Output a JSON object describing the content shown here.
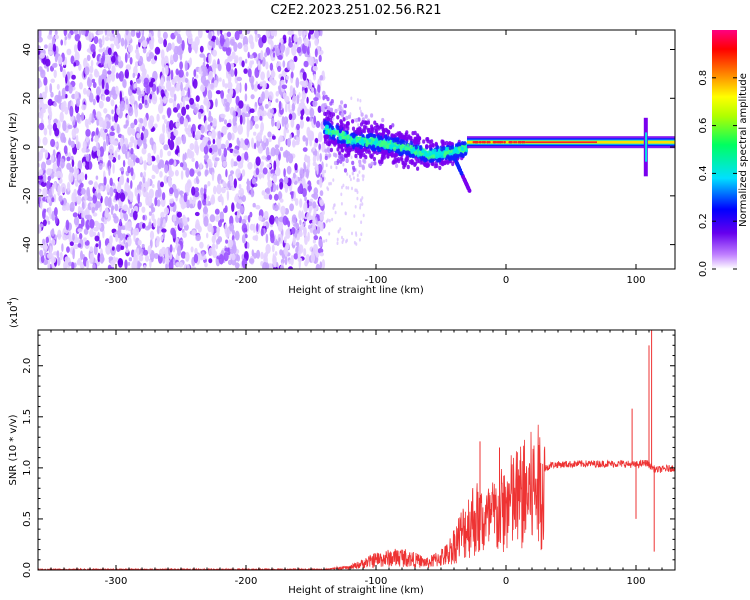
{
  "title": "C2E2.2023.251.02.56.R21",
  "colors": {
    "background": "#ffffff",
    "snr_line": "#ee3333",
    "spectrogram_low": "#7a00ee",
    "spectrogram_mid": "#00e6e6",
    "spectrogram_high": "#ff2020"
  },
  "chart_data": [
    {
      "type": "heatmap",
      "name": "spectrogram",
      "xlabel": "Height of straight line (km)",
      "ylabel": "Frequency (Hz)",
      "xlim": [
        -360,
        130
      ],
      "ylim": [
        -50,
        48
      ],
      "x_ticks": [
        -300,
        -200,
        -100,
        0,
        100
      ],
      "x_tick_labels": [
        "-300",
        "-200",
        "-100",
        "0",
        "100"
      ],
      "y_ticks": [
        -40,
        -20,
        0,
        20,
        40
      ],
      "y_tick_labels": [
        "-40",
        "-20",
        "0",
        "20",
        "40"
      ],
      "colorbar": {
        "label": "Normalized spectral amplitude",
        "range": [
          0,
          1
        ],
        "ticks": [
          0.0,
          0.2,
          0.4,
          0.6,
          0.8
        ],
        "tick_labels": [
          "0.0",
          "0.2",
          "0.4",
          "0.6",
          "0.8"
        ]
      },
      "regions": [
        {
          "x_range": [
            -360,
            -140
          ],
          "description_level": 0.15,
          "freq_range": [
            -50,
            48
          ]
        },
        {
          "x_range": [
            -140,
            -30
          ],
          "description_level": 0.35,
          "freq_range": [
            -20,
            15
          ]
        },
        {
          "x_range": [
            -30,
            130
          ],
          "description_level": 0.9,
          "freq_range": [
            0,
            4
          ]
        }
      ],
      "carrier_track": [
        {
          "x": -140,
          "y": 8
        },
        {
          "x": -120,
          "y": 3
        },
        {
          "x": -100,
          "y": 2
        },
        {
          "x": -80,
          "y": 0
        },
        {
          "x": -60,
          "y": -3
        },
        {
          "x": -40,
          "y": -2
        },
        {
          "x": -30,
          "y": 0
        },
        {
          "x": 0,
          "y": 2
        },
        {
          "x": 50,
          "y": 2
        },
        {
          "x": 100,
          "y": 2
        },
        {
          "x": 130,
          "y": 3
        }
      ]
    },
    {
      "type": "line",
      "name": "snr",
      "xlabel": "Height of straight line (km)",
      "ylabel": "SNR (10 * v/v)",
      "y_multiplier": "(x10",
      "y_multiplier_exp": "4",
      "y_multiplier_close": ")",
      "xlim": [
        -360,
        130
      ],
      "ylim": [
        0,
        23500
      ],
      "x_ticks": [
        -300,
        -200,
        -100,
        0,
        100
      ],
      "x_tick_labels": [
        "-300",
        "-200",
        "-100",
        "0",
        "100"
      ],
      "y_ticks": [
        0,
        5000,
        10000,
        15000,
        20000
      ],
      "y_tick_labels": [
        "0.0",
        "0.5",
        "1.0",
        "1.5",
        "2.0"
      ],
      "envelope": [
        {
          "x": -360,
          "y": 50
        },
        {
          "x": -140,
          "y": 60
        },
        {
          "x": -120,
          "y": 300
        },
        {
          "x": -100,
          "y": 1200
        },
        {
          "x": -80,
          "y": 1500
        },
        {
          "x": -60,
          "y": 800
        },
        {
          "x": -45,
          "y": 1800
        },
        {
          "x": -35,
          "y": 4000
        },
        {
          "x": -25,
          "y": 6000
        },
        {
          "x": -15,
          "y": 5500
        },
        {
          "x": -5,
          "y": 6500
        },
        {
          "x": 5,
          "y": 7800
        },
        {
          "x": 20,
          "y": 9200
        },
        {
          "x": 35,
          "y": 10300
        },
        {
          "x": 60,
          "y": 10400
        },
        {
          "x": 90,
          "y": 10400
        },
        {
          "x": 100,
          "y": 10300
        },
        {
          "x": 108,
          "y": 10500
        },
        {
          "x": 115,
          "y": 9800
        },
        {
          "x": 130,
          "y": 10000
        }
      ],
      "spikes": [
        {
          "x": -20,
          "y": 12600
        },
        {
          "x": -5,
          "y": 12000
        },
        {
          "x": 97,
          "y": 15800
        },
        {
          "x": 100,
          "y": 5000
        },
        {
          "x": 110,
          "y": 22000
        },
        {
          "x": 112,
          "y": 23500
        },
        {
          "x": 114,
          "y": 1800
        }
      ]
    }
  ]
}
